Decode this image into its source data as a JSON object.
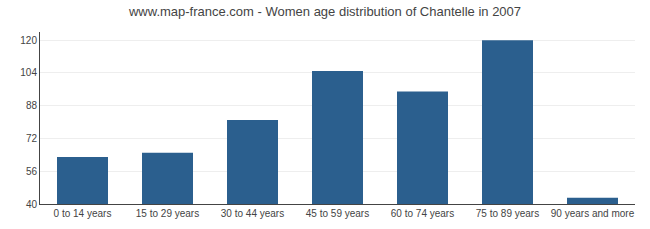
{
  "chart_data": {
    "type": "bar",
    "title": "www.map-france.com - Women age distribution of Chantelle in 2007",
    "categories": [
      "0 to 14 years",
      "15 to 29 years",
      "30 to 44 years",
      "45 to 59 years",
      "60 to 74 years",
      "75 to 89 years",
      "90 years and more"
    ],
    "values": [
      63,
      65,
      81,
      105,
      95,
      120,
      43
    ],
    "color": "#2b5f8e",
    "ylim": [
      40,
      124
    ],
    "yticks": [
      40,
      56,
      72,
      88,
      104,
      120
    ],
    "grid": true
  }
}
